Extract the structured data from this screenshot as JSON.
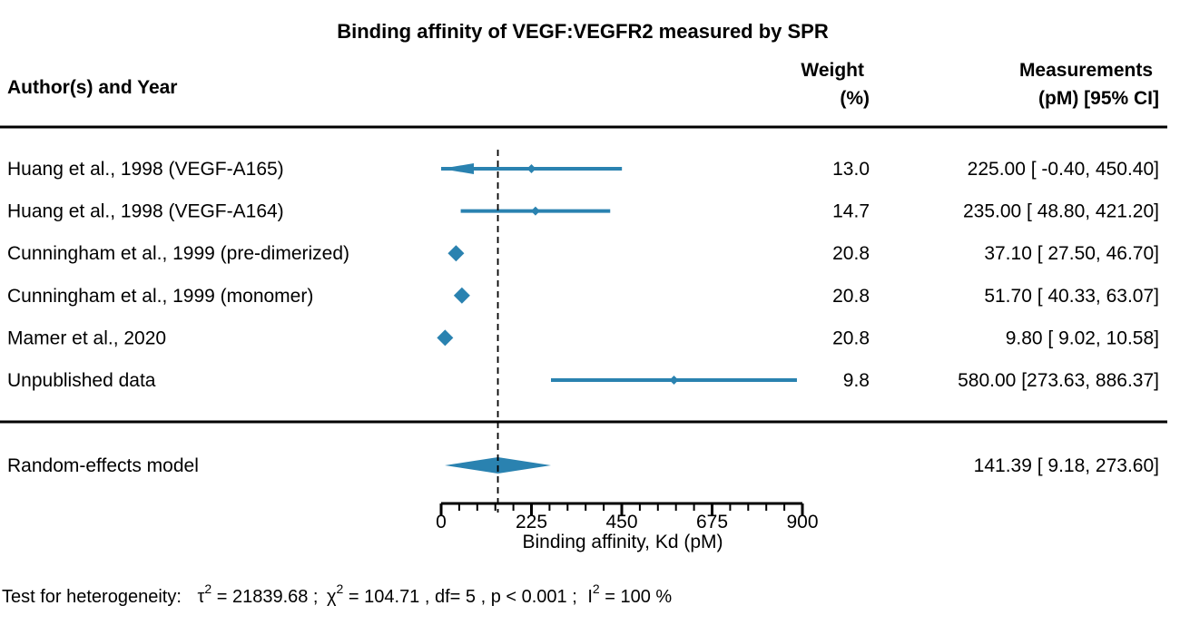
{
  "chart_data": {
    "type": "forest",
    "title": "Binding affinity of VEGF:VEGFR2 measured by SPR",
    "columns": {
      "study": "Author(s) and Year",
      "weight_line1": "Weight",
      "weight_line2": "(%)",
      "measure_line1": "Measurements",
      "measure_line2": "(pM) [95% CI]"
    },
    "studies": [
      {
        "label": "Huang et al., 1998 (VEGF-A165)",
        "estimate": 225.0,
        "lower": -0.4,
        "upper": 450.4,
        "weight": "13.0",
        "ci_text": "225.00 [ -0.40, 450.40]"
      },
      {
        "label": "Huang et al., 1998 (VEGF-A164)",
        "estimate": 235.0,
        "lower": 48.8,
        "upper": 421.2,
        "weight": "14.7",
        "ci_text": "235.00 [ 48.80, 421.20]"
      },
      {
        "label": "Cunningham et al., 1999 (pre-dimerized)",
        "estimate": 37.1,
        "lower": 27.5,
        "upper": 46.7,
        "weight": "20.8",
        "ci_text": "37.10 [ 27.50,  46.70]"
      },
      {
        "label": "Cunningham et al., 1999 (monomer)",
        "estimate": 51.7,
        "lower": 40.33,
        "upper": 63.07,
        "weight": "20.8",
        "ci_text": "51.70 [ 40.33,  63.07]"
      },
      {
        "label": "Mamer et al., 2020",
        "estimate": 9.8,
        "lower": 9.02,
        "upper": 10.58,
        "weight": "20.8",
        "ci_text": "9.80 [  9.02,  10.58]"
      },
      {
        "label": "Unpublished data",
        "estimate": 580.0,
        "lower": 273.63,
        "upper": 886.37,
        "weight": "9.8",
        "ci_text": "580.00 [273.63, 886.37]"
      }
    ],
    "pooled": {
      "label": "Random-effects model",
      "estimate": 141.39,
      "lower": 9.18,
      "upper": 273.6,
      "ci_text": "141.39 [  9.18, 273.60]"
    },
    "x_axis": {
      "label": "Binding affinity, Kd (pM)",
      "ticks": [
        0,
        225,
        450,
        675,
        900
      ],
      "range": [
        0,
        900
      ]
    },
    "heterogeneity": {
      "prefix": "Test for heterogeneity:",
      "tau_symbol": "τ",
      "tau_value": " = 21839.68 ;",
      "chi_symbol": "χ",
      "chi_value": " = 104.71 , df= 5 ,  p < 0.001 ;",
      "i_symbol": "I",
      "i_value": " = 100 %",
      "superscript": "2"
    },
    "marker_color": "#2A82B0"
  }
}
